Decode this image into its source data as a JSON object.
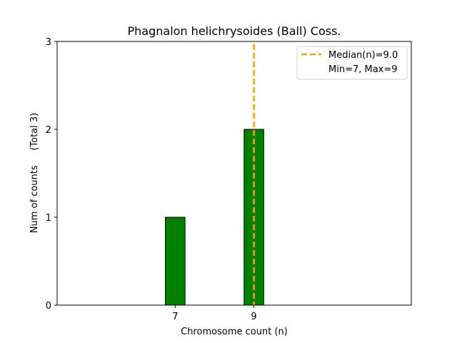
{
  "chart_data": {
    "type": "bar",
    "title": "Phagnalon helichrysoides (Ball) Coss.",
    "xlabel": "Chromosome count (n)",
    "ylabel": "Num of counts     (Total 3)",
    "xlim": [
      4,
      13
    ],
    "ylim": [
      0,
      3
    ],
    "x_ticks": [
      7,
      9
    ],
    "y_ticks": [
      0,
      1,
      2,
      3
    ],
    "bar_color": "#008000",
    "bar_edge_color": "#000000",
    "median_color": "#ffa500",
    "bars": [
      {
        "x": 7,
        "value": 1
      },
      {
        "x": 9,
        "value": 2
      }
    ],
    "median": 9.0,
    "grid": false,
    "legend_position": "top-right",
    "legend": {
      "median_label": "Median(n)=9.0",
      "range_label": "Min=7, Max=9"
    }
  }
}
